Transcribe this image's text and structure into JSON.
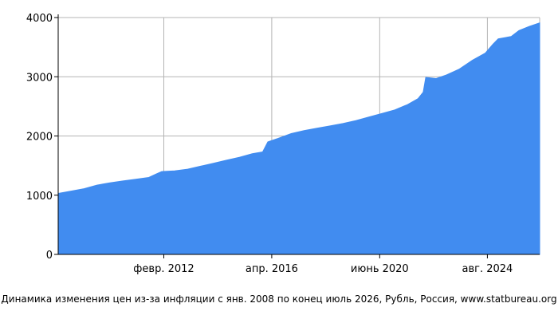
{
  "chart_data": {
    "type": "area",
    "title": "Динамика изменения цен из-за инфляции с янв. 2008 по конец июль 2026, Рубль, Россия, www.statbureau.org",
    "xlabel": "",
    "ylabel": "",
    "xlim": [
      2008.0,
      2026.6
    ],
    "ylim": [
      0,
      4000
    ],
    "grid": true,
    "legend": "none",
    "colors": {
      "fill": "#418cf0",
      "grid": "#b4b4b4",
      "axis": "#000000"
    },
    "x_ticks": [
      {
        "x": 2012.08,
        "label": "февр. 2012"
      },
      {
        "x": 2016.25,
        "label": "апр. 2016"
      },
      {
        "x": 2020.42,
        "label": "июнь 2020"
      },
      {
        "x": 2024.58,
        "label": "авг. 2024"
      }
    ],
    "y_ticks": [
      {
        "y": 0,
        "label": "0"
      },
      {
        "y": 1000,
        "label": "1000"
      },
      {
        "y": 2000,
        "label": "2000"
      },
      {
        "y": 3000,
        "label": "3000"
      },
      {
        "y": 4000,
        "label": "4000"
      }
    ],
    "series": [
      {
        "points": [
          [
            2008.0,
            1030
          ],
          [
            2008.5,
            1070
          ],
          [
            2009.0,
            1110
          ],
          [
            2009.5,
            1170
          ],
          [
            2010.0,
            1210
          ],
          [
            2010.5,
            1240
          ],
          [
            2011.0,
            1270
          ],
          [
            2011.5,
            1300
          ],
          [
            2011.8,
            1360
          ],
          [
            2012.0,
            1400
          ],
          [
            2012.5,
            1410
          ],
          [
            2013.0,
            1440
          ],
          [
            2013.5,
            1490
          ],
          [
            2014.0,
            1540
          ],
          [
            2014.5,
            1590
          ],
          [
            2015.0,
            1640
          ],
          [
            2015.5,
            1700
          ],
          [
            2015.9,
            1730
          ],
          [
            2016.1,
            1900
          ],
          [
            2016.5,
            1960
          ],
          [
            2017.0,
            2040
          ],
          [
            2017.5,
            2090
          ],
          [
            2018.0,
            2130
          ],
          [
            2018.5,
            2170
          ],
          [
            2019.0,
            2210
          ],
          [
            2019.5,
            2260
          ],
          [
            2020.0,
            2320
          ],
          [
            2020.5,
            2380
          ],
          [
            2021.0,
            2440
          ],
          [
            2021.5,
            2530
          ],
          [
            2021.9,
            2630
          ],
          [
            2022.1,
            2740
          ],
          [
            2022.2,
            2990
          ],
          [
            2022.6,
            2970
          ],
          [
            2023.0,
            3030
          ],
          [
            2023.5,
            3130
          ],
          [
            2024.0,
            3280
          ],
          [
            2024.5,
            3400
          ],
          [
            2024.8,
            3550
          ],
          [
            2025.0,
            3640
          ],
          [
            2025.5,
            3680
          ],
          [
            2025.8,
            3780
          ],
          [
            2026.2,
            3850
          ],
          [
            2026.6,
            3910
          ]
        ]
      }
    ],
    "caption": "Динамика изменения цен из-за инфляции с янв. 2008 по конец июль 2026, Рубль, Россия, www.statbureau.org"
  }
}
